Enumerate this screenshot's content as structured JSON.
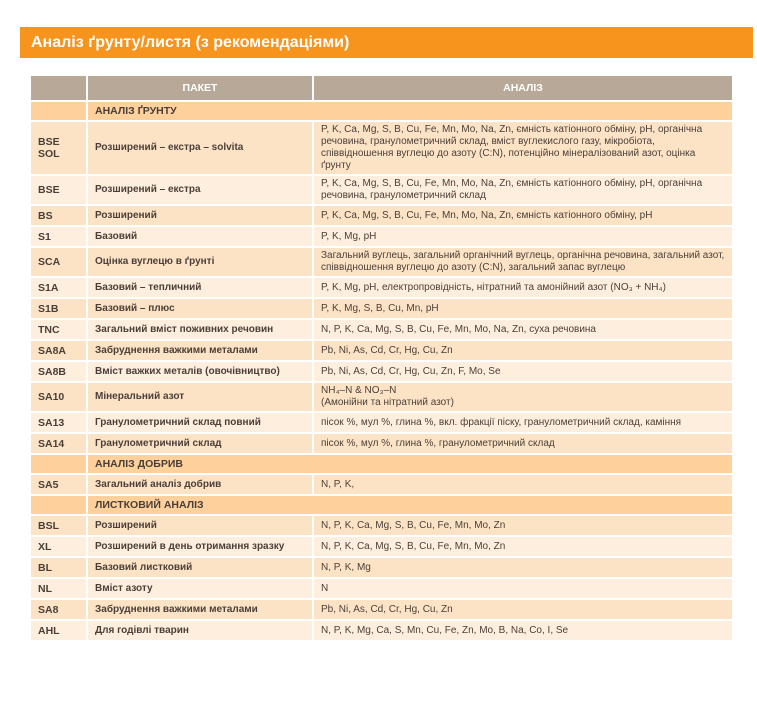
{
  "title": "Аналіз ґрунту/листя (з рекомендаціями)",
  "colors": {
    "banner": "#f7941d",
    "table_header": "#b8a898",
    "section": "#fdd09c",
    "row_dark": "#fde3c6",
    "row_light": "#feeedd"
  },
  "table": {
    "headers": [
      "",
      "ПАКЕТ",
      "АНАЛІЗ"
    ],
    "sections": [
      {
        "title": "АНАЛІЗ ҐРУНТУ",
        "rows": [
          {
            "code": "BSE\nSOL",
            "package": "Розширений – екстра – solvita",
            "analysis": "P, K, Ca, Mg, S, B, Cu, Fe, Mn, Mo, Na, Zn, ємність катіонного обміну, pH, органічна речовина, гранулометричний склад, вміст вуглекислого газу, мікробіота, співвідношення вуглецю до азоту (C:N), потенційно мінералізований азот, оцінка ґрунту"
          },
          {
            "code": "BSE",
            "package": "Розширений – екстра",
            "analysis": "P, K, Ca, Mg, S, B, Cu, Fe, Mn, Mo, Na, Zn, ємність катіонного обміну, pH, органічна речовина, гранулометричний склад"
          },
          {
            "code": "BS",
            "package": "Розширений",
            "analysis": "P, K, Ca, Mg, S, B, Cu, Fe, Mn, Mo, Na, Zn, ємність катіонного обміну, pH"
          },
          {
            "code": "S1",
            "package": "Базовий",
            "analysis": "P, K, Mg, pH"
          },
          {
            "code": "SCA",
            "package": "Оцінка вуглецю в ґрунті",
            "analysis": "Загальний вуглець, загальний органічний вуглець, органічна речовина, загальний азот, співвідношення вуглецю до азоту (C:N), загальний запас вуглецю"
          },
          {
            "code": "S1A",
            "package": "Базовий – тепличний",
            "analysis": "P, K, Mg, pH, електропровідність, нітратний та амонійний азот (NO₃ + NH₄)"
          },
          {
            "code": "S1B",
            "package": "Базовий – плюс",
            "analysis": "P, K, Mg, S, B, Cu, Mn, pH"
          },
          {
            "code": "TNC",
            "package": "Загальний вміст поживних речовин",
            "analysis": "N, P, K, Ca, Mg, S, B, Cu, Fe, Mn, Mo, Na, Zn, суха речовина"
          },
          {
            "code": "SA8A",
            "package": "Забруднення важкими металами",
            "analysis": "Pb, Ni, As, Cd, Cr, Hg, Cu, Zn"
          },
          {
            "code": "SA8B",
            "package": "Вміст важких металів (овочівництво)",
            "analysis": "Pb, Ni, As, Cd, Cr, Hg, Cu, Zn, F, Mo, Se"
          },
          {
            "code": "SA10",
            "package": "Мінеральний азот",
            "analysis": "NH₄–N & NO₃–N\n(Амонійни та нітратний азот)"
          },
          {
            "code": "SA13",
            "package": "Гранулометричний склад повний",
            "analysis": "пісок %, мул %, глина %, вкл. фракції піску, гранулометричний склад, каміння"
          },
          {
            "code": "SA14",
            "package": "Гранулометричний склад",
            "analysis": "пісок %, мул %, глина %, гранулометричний склад"
          }
        ]
      },
      {
        "title": "АНАЛІЗ ДОБРИВ",
        "rows": [
          {
            "code": "SA5",
            "package": "Загальний аналіз добрив",
            "analysis": "N, P, K,"
          }
        ]
      },
      {
        "title": "ЛИСТКОВИЙ АНАЛІЗ",
        "rows": [
          {
            "code": "BSL",
            "package": "Розширений",
            "analysis": "N, P, K, Ca, Mg, S, B, Cu, Fe, Mn, Mo, Zn"
          },
          {
            "code": "XL",
            "package": "Розширений в день отримання зразку",
            "analysis": "N, P, K, Ca, Mg, S, B, Cu, Fe, Mn, Mo, Zn"
          },
          {
            "code": "BL",
            "package": "Базовий листковий",
            "analysis": "N, P, K, Mg"
          },
          {
            "code": "NL",
            "package": "Вміст азоту",
            "analysis": "N"
          },
          {
            "code": "SA8",
            "package": "Забруднення важкими металами",
            "analysis": "Pb, Ni, As, Cd, Cr, Hg, Cu, Zn"
          },
          {
            "code": "AHL",
            "package": "Для годівлі тварин",
            "analysis": "N, P, K, Mg, Ca, S, Mn, Cu, Fe, Zn, Mo, B, Na, Co, I, Se"
          }
        ]
      }
    ]
  }
}
